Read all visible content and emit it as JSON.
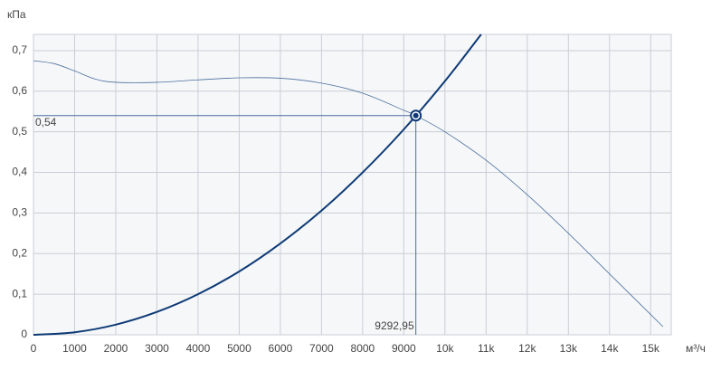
{
  "chart_data": {
    "type": "line",
    "y_label": "кПа",
    "x_label": "м³/ч",
    "xlim": [
      0,
      15500
    ],
    "ylim": [
      0,
      0.74
    ],
    "xticks": [
      0,
      1000,
      2000,
      3000,
      4000,
      5000,
      6000,
      7000,
      8000,
      9000,
      {
        "value": 10000,
        "label": "10k"
      },
      {
        "value": 11000,
        "label": "11k"
      },
      {
        "value": 12000,
        "label": "12k"
      },
      {
        "value": 13000,
        "label": "13k"
      },
      {
        "value": 14000,
        "label": "14k"
      },
      {
        "value": 15000,
        "label": "15k"
      }
    ],
    "yticks": [
      0,
      {
        "value": 0.1,
        "label": "0,1"
      },
      {
        "value": 0.2,
        "label": "0,2"
      },
      {
        "value": 0.3,
        "label": "0,3"
      },
      {
        "value": 0.4,
        "label": "0,4"
      },
      {
        "value": 0.5,
        "label": "0,5"
      },
      {
        "value": 0.6,
        "label": "0,6"
      },
      {
        "value": 0.7,
        "label": "0,7"
      }
    ],
    "grid": true,
    "series": [
      {
        "color": "#4a6f9e",
        "width": 0.8,
        "x": [
          0,
          500,
          1000,
          1500,
          2000,
          3000,
          4000,
          5000,
          6000,
          7000,
          8000,
          9000,
          9293,
          10000,
          11000,
          12000,
          13000,
          14000,
          15000,
          15300
        ],
        "values": [
          0.675,
          0.668,
          0.65,
          0.63,
          0.622,
          0.622,
          0.628,
          0.633,
          0.632,
          0.62,
          0.595,
          0.553,
          0.54,
          0.5,
          0.43,
          0.345,
          0.25,
          0.15,
          0.05,
          0.02
        ]
      },
      {
        "color": "#0d3a75",
        "width": 2,
        "x": [
          0,
          1000,
          2000,
          3000,
          4000,
          5000,
          6000,
          7000,
          8000,
          9000,
          10000,
          10880
        ],
        "values": [
          0,
          0.00625,
          0.025,
          0.0563,
          0.1,
          0.156,
          0.225,
          0.306,
          0.4,
          0.506,
          0.625,
          0.74
        ]
      }
    ],
    "operating_point": {
      "x": 9292.95,
      "y": 0.54,
      "x_label": "9292,95",
      "y_label": "0,54",
      "color": "#0d3a75"
    }
  }
}
